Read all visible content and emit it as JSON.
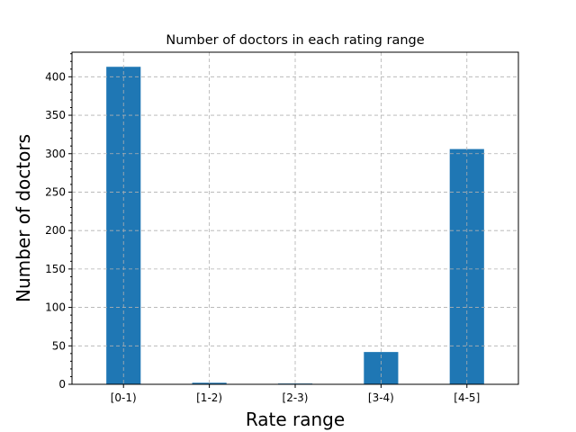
{
  "chart_data": {
    "type": "bar",
    "title": "Number of doctors in each rating range",
    "xlabel": "Rate range",
    "ylabel": "Number of doctors",
    "categories": [
      "[0-1)",
      "[1-2)",
      "[2-3)",
      "[3-4)",
      "[4-5]"
    ],
    "values": [
      413,
      2,
      1,
      42,
      306
    ],
    "ylim": [
      0,
      432
    ],
    "yticks": [
      0,
      50,
      100,
      150,
      200,
      250,
      300,
      350,
      400
    ],
    "grid": true,
    "bar_color": "#1f77b4"
  }
}
